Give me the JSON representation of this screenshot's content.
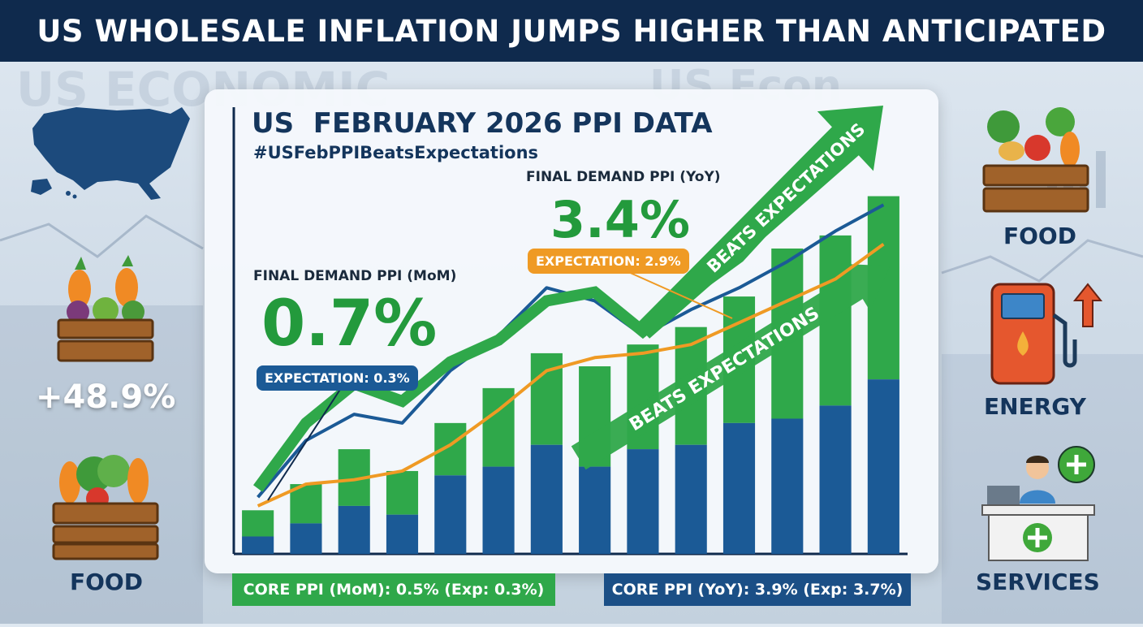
{
  "header": {
    "title": "US WHOLESALE INFLATION JUMPS HIGHER THAN ANTICIPATED"
  },
  "background": {
    "ghost_text_1": "US ECONOMIC",
    "ghost_text_2": "US Econ"
  },
  "panel": {
    "title": "US  FEBRUARY 2026 PPI DATA",
    "hashtag": "#USFebPPIBeatsExpectations"
  },
  "mom": {
    "label": "FINAL DEMAND PPI (MoM)",
    "value": "0.7%",
    "expectation": "EXPECTATION: 0.3%"
  },
  "yoy": {
    "label": "FINAL DEMAND PPI (YoY)",
    "value": "3.4%",
    "expectation": "EXPECTATION: 2.9%"
  },
  "arrows": {
    "upper_label": "BEATS EXPECTATIONS",
    "lower_label": "BEATS EXPECTATIONS"
  },
  "bottom": {
    "core_mom": "CORE PPI (MoM): 0.5% (Exp: 0.3%)",
    "core_yoy": "CORE PPI (YoY): 3.9% (Exp: 3.7%)"
  },
  "left": {
    "stat": "+48.9%",
    "food_label": "FOOD"
  },
  "right": {
    "food_label": "FOOD",
    "energy_label": "ENERGY",
    "services_label": "SERVICES"
  },
  "colors": {
    "navy": "#0f2a4d",
    "green": "#2fa84a",
    "blue": "#1b5a96",
    "orange": "#ef9a24"
  },
  "chart_data": {
    "type": "bar",
    "title": "",
    "bars": {
      "green_total": [
        1.0,
        1.6,
        2.4,
        1.9,
        3.0,
        3.8,
        4.6,
        4.3,
        4.8,
        5.2,
        5.9,
        7.0,
        7.3,
        8.2
      ],
      "blue_base": [
        0.4,
        0.7,
        1.1,
        0.9,
        1.8,
        2.0,
        2.5,
        2.0,
        2.4,
        2.5,
        3.0,
        3.1,
        3.4,
        4.0
      ]
    },
    "series": [
      {
        "name": "blue-line",
        "values": [
          1.3,
          2.6,
          3.2,
          3.0,
          4.2,
          5.0,
          6.1,
          5.8,
          5.0,
          5.6,
          6.1,
          6.7,
          7.4,
          8.0
        ]
      },
      {
        "name": "orange-line",
        "values": [
          1.1,
          1.6,
          1.7,
          1.9,
          2.5,
          3.3,
          4.2,
          4.5,
          4.6,
          4.8,
          5.3,
          5.8,
          6.3,
          7.1
        ]
      },
      {
        "name": "green-arrow-line",
        "values": [
          1.5,
          3.0,
          3.9,
          3.5,
          4.4,
          4.9,
          5.8,
          6.0,
          5.1,
          6.0,
          6.8,
          8.0,
          9.3,
          10.0
        ]
      }
    ],
    "ylim": [
      0,
      10.5
    ],
    "xlabel": "",
    "ylabel": ""
  }
}
